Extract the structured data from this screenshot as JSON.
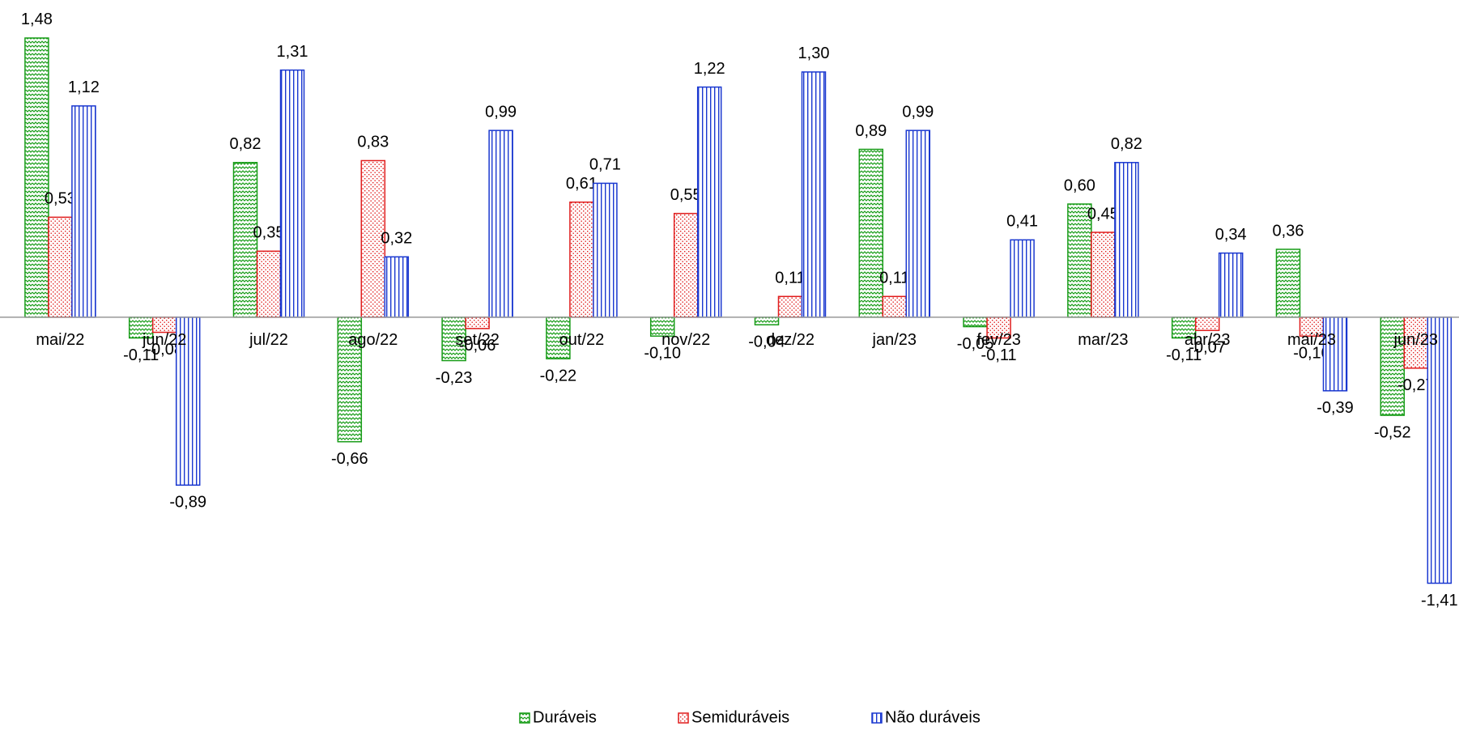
{
  "chart_data": {
    "type": "bar",
    "categories": [
      "mai/22",
      "jun/22",
      "jul/22",
      "ago/22",
      "set/22",
      "out/22",
      "nov/22",
      "dez/22",
      "jan/23",
      "fev/23",
      "mar/23",
      "abr/23",
      "mai/23",
      "jun/23"
    ],
    "series": [
      {
        "name": "Duráveis",
        "color": "#179c17",
        "pattern": "zigzag",
        "values": [
          1.48,
          -0.11,
          0.82,
          -0.66,
          -0.23,
          -0.22,
          -0.1,
          -0.04,
          0.89,
          -0.05,
          0.6,
          -0.11,
          0.36,
          -0.52
        ],
        "value_labels": [
          "1,48",
          "-0,11",
          "0,82",
          "-0,66",
          "-0,23",
          "-0,22",
          "-0,10",
          "-0,04",
          "0,89",
          "-0,05",
          "0,60",
          "-0,11",
          "0,36",
          "-0,52"
        ]
      },
      {
        "name": "Semiduráveis",
        "color": "#e01c1c",
        "pattern": "dots",
        "values": [
          0.53,
          -0.08,
          0.35,
          0.83,
          -0.06,
          0.61,
          0.55,
          0.11,
          0.11,
          -0.11,
          0.45,
          -0.07,
          -0.1,
          -0.27
        ],
        "value_labels": [
          "0,53",
          "-0,08",
          "0,35",
          "0,83",
          "-0,06",
          "0,61",
          "0,55",
          "0,11",
          "0,11",
          "-0,11",
          "0,45",
          "-0,07",
          "-0,10",
          "-0,27"
        ]
      },
      {
        "name": "Não duráveis",
        "color": "#1a38d0",
        "pattern": "vlines",
        "values": [
          1.12,
          -0.89,
          1.31,
          0.32,
          0.99,
          0.71,
          1.22,
          1.3,
          0.99,
          0.41,
          0.82,
          0.34,
          -0.39,
          -1.41
        ],
        "value_labels": [
          "1,12",
          "-0,89",
          "1,31",
          "0,32",
          "0,99",
          "0,71",
          "1,22",
          "1,30",
          "0,99",
          "0,41",
          "0,82",
          "0,34",
          "-0,39",
          "-1,41"
        ]
      }
    ],
    "ylim": [
      -2,
      1.6
    ],
    "legend": "bottom"
  }
}
